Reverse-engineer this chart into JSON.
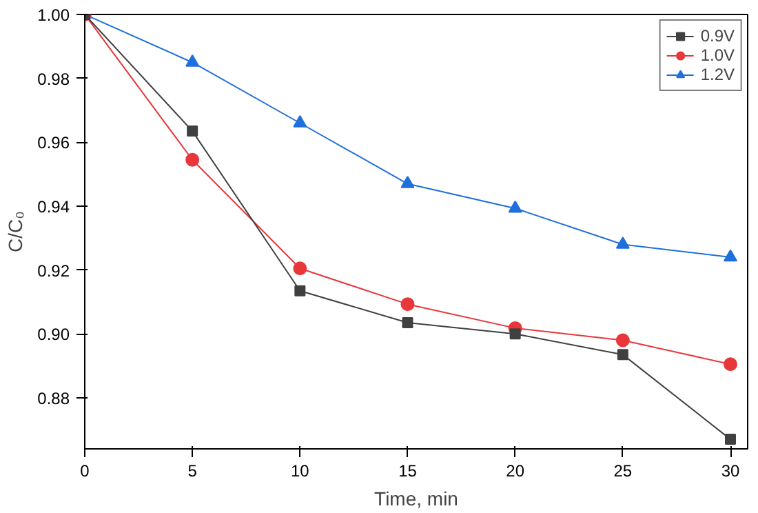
{
  "chart_data": {
    "type": "line",
    "xlabel": "Time, min",
    "ylabel": "C/C₀",
    "x": [
      0,
      5,
      10,
      15,
      20,
      25,
      30
    ],
    "series": [
      {
        "name": "0.9V",
        "color": "#404040",
        "marker": "square",
        "values": [
          1.0,
          0.9635,
          0.9135,
          0.9035,
          0.9,
          0.8935,
          0.867
        ]
      },
      {
        "name": "1.0V",
        "color": "#e8373a",
        "marker": "circle",
        "values": [
          1.0,
          0.9545,
          0.9205,
          0.9093,
          0.9018,
          0.898,
          0.8905
        ]
      },
      {
        "name": "1.2V",
        "color": "#1f6fdc",
        "marker": "triangle",
        "values": [
          1.0,
          0.985,
          0.966,
          0.947,
          0.9393,
          0.928,
          0.924
        ]
      }
    ],
    "xlim": [
      0,
      30.8
    ],
    "ylim": [
      0.864,
      1.0
    ],
    "xticks": [
      0,
      5,
      10,
      15,
      20,
      25,
      30
    ],
    "yticks": [
      {
        "value": 0.88,
        "label": "0.88"
      },
      {
        "value": 0.9,
        "label": "0.90"
      },
      {
        "value": 0.92,
        "label": "0.92"
      },
      {
        "value": 0.94,
        "label": "0.94"
      },
      {
        "value": 0.96,
        "label": "0.96"
      },
      {
        "value": 0.98,
        "label": "0.98"
      },
      {
        "value": 1.0,
        "label": "1.00"
      }
    ],
    "grid": false,
    "legend": "top right",
    "line_style": "solid"
  }
}
